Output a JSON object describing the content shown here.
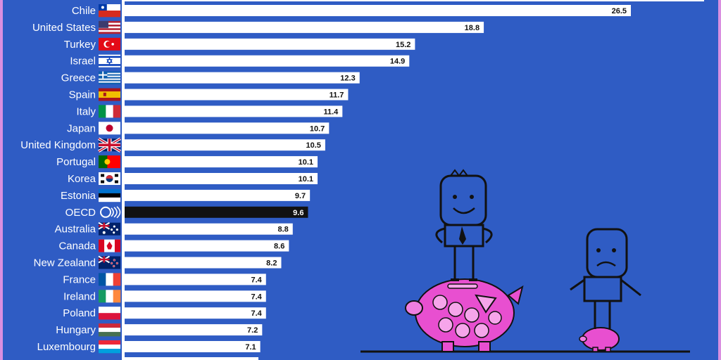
{
  "chart_data": {
    "type": "bar",
    "orientation": "horizontal",
    "categories": [
      "Chile",
      "United States",
      "Turkey",
      "Israel",
      "Greece",
      "Spain",
      "Italy",
      "Japan",
      "United Kingdom",
      "Portugal",
      "Korea",
      "Estonia",
      "OECD",
      "Australia",
      "Canada",
      "New Zealand",
      "France",
      "Ireland",
      "Poland",
      "Hungary",
      "Luxembourg"
    ],
    "values": [
      26.5,
      18.8,
      15.2,
      14.9,
      12.3,
      11.7,
      11.4,
      10.7,
      10.5,
      10.1,
      10.1,
      9.7,
      9.6,
      8.8,
      8.6,
      8.2,
      7.4,
      7.4,
      7.4,
      7.2,
      7.1
    ],
    "value_labels": [
      "26.5",
      "18.8",
      "15.2",
      "14.9",
      "12.3",
      "11.7",
      "11.4",
      "10.7",
      "10.5",
      "10.1",
      "10.1",
      "9.7",
      "9.6",
      "8.8",
      "8.6",
      "8.2",
      "7.4",
      "7.4",
      "7.4",
      "7.2",
      "7.1"
    ],
    "highlight": "OECD",
    "xlim": [
      0,
      30
    ],
    "grid": false,
    "legend": "none",
    "colors": {
      "background": "#2f5cc4",
      "bar": "#ffffff",
      "highlight_bar": "#111111",
      "category_text": "#ffffff",
      "value_text": "#111111",
      "accent_pink": "#e84fd0"
    },
    "flags": [
      "flag-chile-icon",
      "flag-united-states-icon",
      "flag-turkey-icon",
      "flag-israel-icon",
      "flag-greece-icon",
      "flag-spain-icon",
      "flag-italy-icon",
      "flag-japan-icon",
      "flag-united-kingdom-icon",
      "flag-portugal-icon",
      "flag-korea-icon",
      "flag-estonia-icon",
      "oecd-logo-icon",
      "flag-australia-icon",
      "flag-canada-icon",
      "flag-new-zealand-icon",
      "flag-france-icon",
      "flag-ireland-icon",
      "flag-poland-icon",
      "flag-hungary-icon",
      "flag-luxembourg-icon"
    ]
  }
}
